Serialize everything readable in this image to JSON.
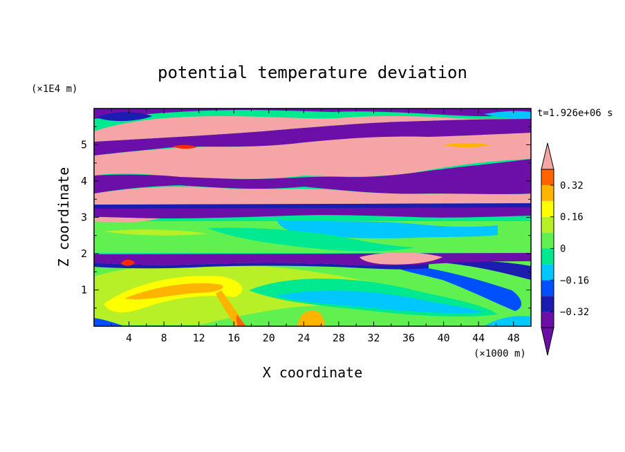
{
  "chart_data": {
    "type": "heatmap",
    "title": "potential temperature deviation",
    "time_label": "t=1.926e+06 s",
    "xlabel": "X coordinate",
    "ylabel": "Z coordinate",
    "x_unit": "(×1000 m)",
    "y_unit": "(×1E4 m)",
    "xlim": [
      0,
      50
    ],
    "ylim": [
      0,
      6
    ],
    "x_ticks": [
      4,
      8,
      12,
      16,
      20,
      24,
      28,
      32,
      36,
      40,
      44,
      48
    ],
    "y_ticks": [
      1,
      2,
      3,
      4,
      5
    ],
    "colorbar": {
      "tick_labels": [
        "0.32",
        "0.16",
        "0",
        "−0.16",
        "−0.32"
      ],
      "tick_values": [
        0.32,
        0.16,
        0,
        -0.16,
        -0.32
      ],
      "levels": [
        -0.4,
        -0.32,
        -0.24,
        -0.16,
        -0.08,
        0,
        0.08,
        0.16,
        0.24,
        0.32,
        0.4
      ],
      "colors": [
        "#6c0fa8",
        "#1c1cb0",
        "#0050ff",
        "#00c8ff",
        "#00e890",
        "#60f050",
        "#b8f028",
        "#ffff00",
        "#ffb400",
        "#ff6400",
        "#ff2800",
        "#f5a5a5"
      ],
      "under_color": "#6c0fa8",
      "over_color": "#f5a5a5"
    }
  }
}
